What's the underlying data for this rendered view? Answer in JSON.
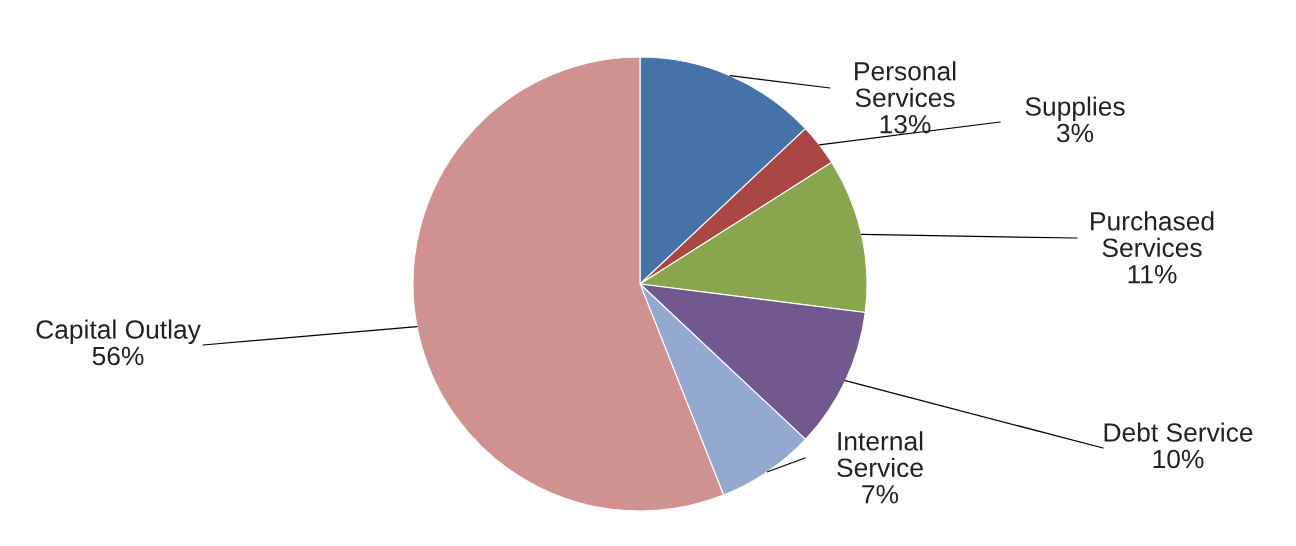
{
  "chart_data": {
    "type": "pie",
    "categories": [
      "Personal\nServices",
      "Supplies",
      "Purchased\nServices",
      "Debt Service",
      "Internal\nService",
      "Capital Outlay"
    ],
    "values": [
      13,
      3,
      11,
      10,
      7,
      56
    ],
    "value_labels": [
      "13%",
      "3%",
      "11%",
      "10%",
      "7%",
      "56%"
    ],
    "colors": [
      "#4572a7",
      "#aa4643",
      "#89a54e",
      "#71588f",
      "#93a9cf",
      "#d09290"
    ],
    "legend": false
  }
}
